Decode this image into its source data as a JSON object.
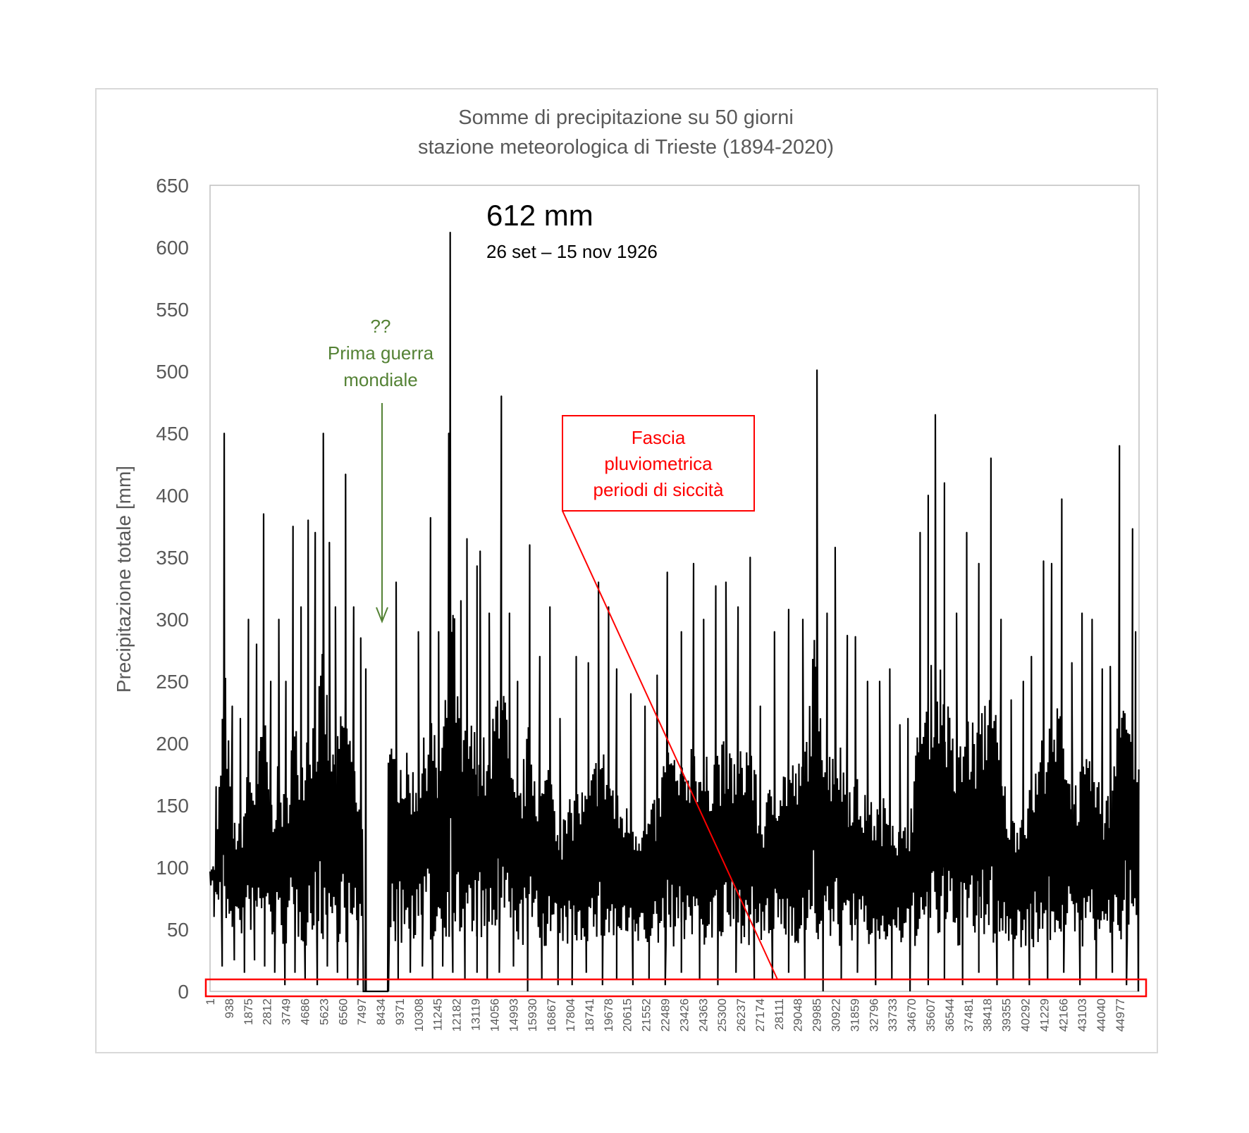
{
  "chart_data": {
    "type": "line",
    "title": [
      "Somme di precipitazione su 50 giorni",
      "stazione meteorologica di Trieste (1894-2020)"
    ],
    "ylabel": "Precipitazione totale [mm]",
    "xlabel": "",
    "ylim": [
      0,
      650
    ],
    "yticks": [
      "0",
      "50",
      "100",
      "150",
      "200",
      "250",
      "300",
      "350",
      "400",
      "450",
      "500",
      "550",
      "600",
      "650"
    ],
    "xlim": [
      1,
      45920
    ],
    "xticks": [
      "1",
      "938",
      "1875",
      "2812",
      "3749",
      "4686",
      "5623",
      "6560",
      "7497",
      "8434",
      "9371",
      "10308",
      "11245",
      "12182",
      "13119",
      "14056",
      "14993",
      "15930",
      "16867",
      "17804",
      "18741",
      "19678",
      "20615",
      "21552",
      "22489",
      "23426",
      "24363",
      "25300",
      "26237",
      "27174",
      "28111",
      "29048",
      "29985",
      "30922",
      "31859",
      "32796",
      "33733",
      "34670",
      "35607",
      "36544",
      "37481",
      "38418",
      "39355",
      "40292",
      "41229",
      "42166",
      "43103",
      "44040",
      "44977"
    ],
    "grid": false,
    "line_color": "#000000",
    "series": [
      {
        "peaks": [
          [
            300,
            165
          ],
          [
            700,
            450
          ],
          [
            1100,
            230
          ],
          [
            1500,
            220
          ],
          [
            1900,
            300
          ],
          [
            2300,
            280
          ],
          [
            2650,
            385
          ],
          [
            3000,
            250
          ],
          [
            3400,
            300
          ],
          [
            3750,
            250
          ],
          [
            4100,
            375
          ],
          [
            4500,
            310
          ],
          [
            4850,
            380
          ],
          [
            5200,
            370
          ],
          [
            5600,
            450
          ],
          [
            5900,
            362
          ],
          [
            6200,
            310
          ],
          [
            6700,
            417
          ],
          [
            7100,
            310
          ],
          [
            7450,
            285
          ],
          [
            7700,
            260
          ],
          [
            9200,
            330
          ],
          [
            10300,
            290
          ],
          [
            10900,
            382
          ],
          [
            11300,
            290
          ],
          [
            11800,
            450
          ],
          [
            11870,
            612
          ],
          [
            12400,
            315
          ],
          [
            12700,
            365
          ],
          [
            13200,
            343
          ],
          [
            13350,
            355
          ],
          [
            13800,
            305
          ],
          [
            14400,
            480
          ],
          [
            14800,
            305
          ],
          [
            15200,
            250
          ],
          [
            15800,
            360
          ],
          [
            16300,
            270
          ],
          [
            16800,
            310
          ],
          [
            17300,
            220
          ],
          [
            18100,
            270
          ],
          [
            18700,
            265
          ],
          [
            19200,
            330
          ],
          [
            19700,
            310
          ],
          [
            20100,
            260
          ],
          [
            20800,
            240
          ],
          [
            21500,
            230
          ],
          [
            22100,
            255
          ],
          [
            22600,
            338
          ],
          [
            23300,
            290
          ],
          [
            23900,
            345
          ],
          [
            24400,
            300
          ],
          [
            25000,
            327
          ],
          [
            25500,
            330
          ],
          [
            26100,
            310
          ],
          [
            26700,
            350
          ],
          [
            27200,
            230
          ],
          [
            27900,
            290
          ],
          [
            28600,
            308
          ],
          [
            29300,
            300
          ],
          [
            30000,
            501
          ],
          [
            30500,
            305
          ],
          [
            30900,
            358
          ],
          [
            31500,
            287
          ],
          [
            31900,
            286
          ],
          [
            32500,
            250
          ],
          [
            33100,
            250
          ],
          [
            33600,
            260
          ],
          [
            34100,
            215
          ],
          [
            34500,
            220
          ],
          [
            35100,
            370
          ],
          [
            35500,
            400
          ],
          [
            35850,
            465
          ],
          [
            36300,
            410
          ],
          [
            36900,
            305
          ],
          [
            37400,
            370
          ],
          [
            38000,
            345
          ],
          [
            38600,
            430
          ],
          [
            39100,
            300
          ],
          [
            39600,
            235
          ],
          [
            40200,
            250
          ],
          [
            40600,
            270
          ],
          [
            41200,
            347
          ],
          [
            41600,
            345
          ],
          [
            42100,
            397
          ],
          [
            42600,
            265
          ],
          [
            43100,
            305
          ],
          [
            43600,
            300
          ],
          [
            44100,
            260
          ],
          [
            44500,
            262
          ],
          [
            44950,
            440
          ],
          [
            45600,
            373
          ],
          [
            45750,
            290
          ]
        ],
        "lows": [
          [
            200,
            60
          ],
          [
            600,
            20
          ],
          [
            1200,
            25
          ],
          [
            1700,
            15
          ],
          [
            2200,
            25
          ],
          [
            2700,
            20
          ],
          [
            3200,
            15
          ],
          [
            3700,
            5
          ],
          [
            4200,
            15
          ],
          [
            4700,
            10
          ],
          [
            5300,
            5
          ],
          [
            5800,
            20
          ],
          [
            6300,
            15
          ],
          [
            6800,
            10
          ],
          [
            7300,
            5
          ],
          [
            7650,
            0
          ],
          [
            8000,
            0
          ],
          [
            8300,
            0
          ],
          [
            8700,
            0
          ],
          [
            9300,
            10
          ],
          [
            9900,
            15
          ],
          [
            10500,
            20
          ],
          [
            11000,
            10
          ],
          [
            11500,
            20
          ],
          [
            12000,
            15
          ],
          [
            12600,
            10
          ],
          [
            13200,
            15
          ],
          [
            13700,
            10
          ],
          [
            14300,
            15
          ],
          [
            15000,
            20
          ],
          [
            15700,
            0
          ],
          [
            16400,
            10
          ],
          [
            17200,
            5
          ],
          [
            17900,
            5
          ],
          [
            18600,
            15
          ],
          [
            19400,
            5
          ],
          [
            20100,
            10
          ],
          [
            20900,
            5
          ],
          [
            21700,
            10
          ],
          [
            22500,
            5
          ],
          [
            23300,
            15
          ],
          [
            24200,
            10
          ],
          [
            25100,
            5
          ],
          [
            26000,
            15
          ],
          [
            26900,
            10
          ],
          [
            27800,
            10
          ],
          [
            28600,
            15
          ],
          [
            29400,
            10
          ],
          [
            30300,
            0
          ],
          [
            31200,
            10
          ],
          [
            32000,
            15
          ],
          [
            32900,
            5
          ],
          [
            33700,
            10
          ],
          [
            34600,
            0
          ],
          [
            35500,
            5
          ],
          [
            36300,
            10
          ],
          [
            37200,
            5
          ],
          [
            38000,
            15
          ],
          [
            38900,
            5
          ],
          [
            39700,
            10
          ],
          [
            40500,
            5
          ],
          [
            41400,
            10
          ],
          [
            42200,
            15
          ],
          [
            43000,
            5
          ],
          [
            43800,
            10
          ],
          [
            44600,
            15
          ],
          [
            45300,
            5
          ],
          [
            45880,
            0
          ]
        ]
      }
    ],
    "annotations": {
      "peak_value": "612 mm",
      "peak_dates": "26 set – 15 nov 1926",
      "war_q": "??",
      "war_line1": "Prima guerra",
      "war_line2": "mondiale",
      "band_line1": "Fascia",
      "band_line2": "pluviometrica",
      "band_line3": "periodi di siccità",
      "band_range": [
        0,
        10
      ]
    },
    "colors": {
      "green": "#548235",
      "red": "#ff0000",
      "text": "#595959",
      "axis": "#bfbfbf"
    }
  }
}
